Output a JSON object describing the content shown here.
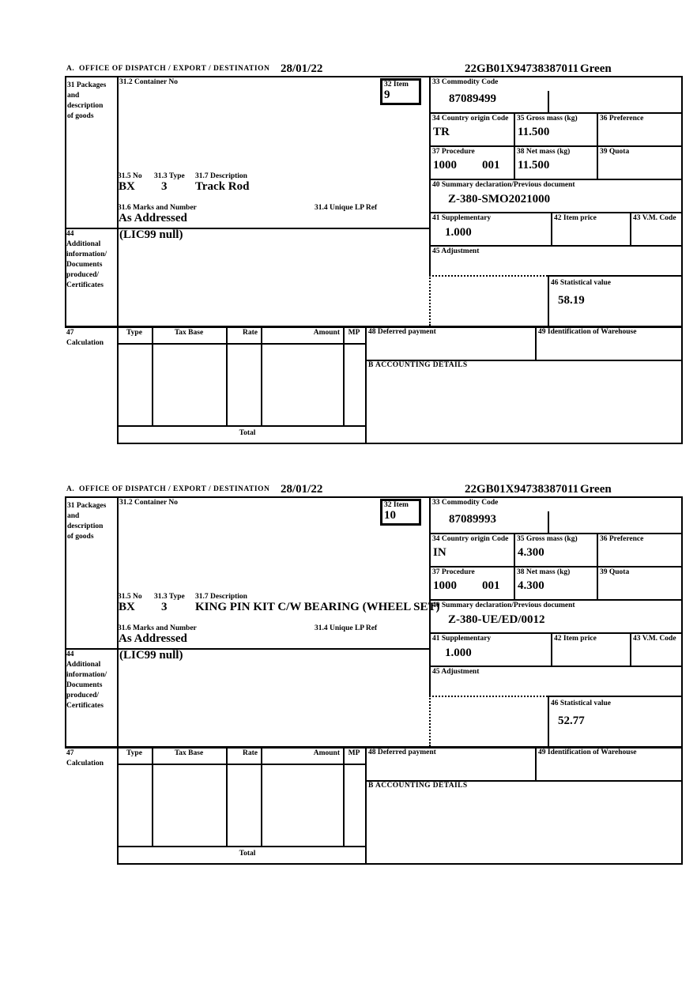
{
  "header": {
    "office_label": "A.  OFFICE OF DISPATCH / EXPORT / DESTINATION",
    "date": "28/01/22",
    "mrn": "22GB01X94738387011",
    "routing": "Green"
  },
  "labels": {
    "box31": "31 Packages\nand\ndescription\nof goods",
    "container_no": "31.2 Container No",
    "item": "32 Item",
    "commodity": "33 Commodity Code",
    "origin": "34 Country origin Code",
    "gross": "35 Gross mass (kg)",
    "preference": "36 Preference",
    "procedure": "37 Procedure",
    "net": "38 Net mass (kg)",
    "quota": "39 Quota",
    "prev_doc": "40 Summary declaration/Previous document",
    "supplementary": "41 Supplementary",
    "item_price": "42 Item price",
    "vm_code": "43 V.M. Code",
    "box44": "44\nAdditional\ninformation/\nDocuments\nproduced/\nCertificates",
    "adjustment": "45 Adjustment",
    "statistical": "46 Statistical value",
    "box47": "47\nCalculation",
    "pkg_no": "31.5 No",
    "pkg_type": "31.3 Type",
    "pkg_desc": "31.7 Description",
    "marks": "31.6 Marks and Number",
    "lp_ref": "31.4 Unique LP Ref",
    "deferred": "48 Deferred payment",
    "warehouse": "49 Identification of Warehouse",
    "accounting": "B ACCOUNTING DETAILS",
    "total": "Total",
    "col_type": "Type",
    "col_tax_base": "Tax Base",
    "col_rate": "Rate",
    "col_amount": "Amount",
    "col_mp": "MP"
  },
  "colors": {
    "ink": "#000000",
    "paper": "#ffffff"
  },
  "items": [
    {
      "item_no": "9",
      "commodity_code": "87089499",
      "origin": "TR",
      "gross_mass": "11.500",
      "net_mass": "11.500",
      "procedure": "1000",
      "procedure_extra": "001",
      "preference": "",
      "quota": "",
      "package_no": "BX",
      "package_type": "3",
      "description": "Track Rod",
      "marks": "As Addressed",
      "lp_ref": "",
      "additional_info": "(LIC99 null)",
      "previous_document": "Z-380-SMO2021000",
      "supplementary": "1.000",
      "item_price": "",
      "vm_code": "",
      "adjustment": "",
      "statistical_value": "58.19"
    },
    {
      "item_no": "10",
      "commodity_code": "87089993",
      "origin": "IN",
      "gross_mass": "4.300",
      "net_mass": "4.300",
      "procedure": "1000",
      "procedure_extra": "001",
      "preference": "",
      "quota": "",
      "package_no": "BX",
      "package_type": "3",
      "description": "KING PIN KIT C/W BEARING (WHEEL SET)",
      "marks": "As Addressed",
      "lp_ref": "",
      "additional_info": "(LIC99 null)",
      "previous_document": "Z-380-UE/ED/0012",
      "supplementary": "1.000",
      "item_price": "",
      "vm_code": "",
      "adjustment": "",
      "statistical_value": "52.77"
    }
  ]
}
